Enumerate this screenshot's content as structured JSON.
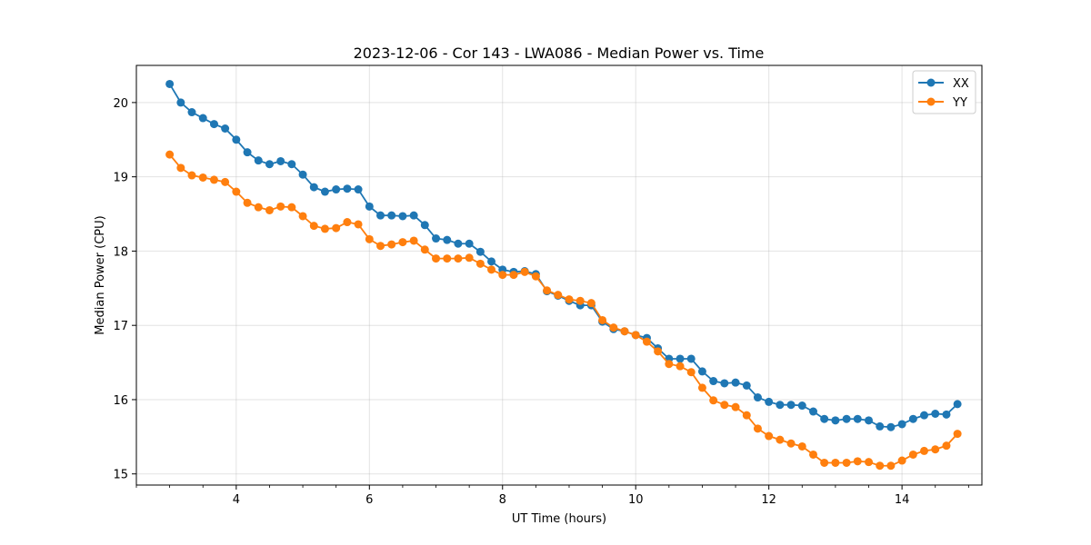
{
  "chart_data": {
    "type": "line",
    "title": "2023-12-06 - Cor 143 - LWA086 - Median Power vs. Time",
    "xlabel": "UT Time (hours)",
    "ylabel": "Median Power (CPU)",
    "xlim": [
      2.5,
      15.2
    ],
    "ylim": [
      14.85,
      20.5
    ],
    "xticks": [
      4,
      6,
      8,
      10,
      12,
      14
    ],
    "xtick_labels": [
      "4",
      "6",
      "8",
      "10",
      "12",
      "14"
    ],
    "xminor_step": 0.5,
    "yticks": [
      15,
      16,
      17,
      18,
      19,
      20
    ],
    "ytick_labels": [
      "15",
      "16",
      "17",
      "18",
      "19",
      "20"
    ],
    "grid": true,
    "legend_position": "top-right",
    "x": [
      3.0,
      3.167,
      3.333,
      3.5,
      3.667,
      3.833,
      4.0,
      4.167,
      4.333,
      4.5,
      4.667,
      4.833,
      5.0,
      5.167,
      5.333,
      5.5,
      5.667,
      5.833,
      6.0,
      6.167,
      6.333,
      6.5,
      6.667,
      6.833,
      7.0,
      7.167,
      7.333,
      7.5,
      7.667,
      7.833,
      8.0,
      8.167,
      8.333,
      8.5,
      8.667,
      8.833,
      9.0,
      9.167,
      9.333,
      9.5,
      9.667,
      9.833,
      10.0,
      10.167,
      10.333,
      10.5,
      10.667,
      10.833,
      11.0,
      11.167,
      11.333,
      11.5,
      11.667,
      11.833,
      12.0,
      12.167,
      12.333,
      12.5,
      12.667,
      12.833,
      13.0,
      13.167,
      13.333,
      13.5,
      13.667,
      13.833,
      14.0,
      14.167,
      14.333,
      14.5,
      14.667,
      14.833
    ],
    "series": [
      {
        "name": "XX",
        "color": "#1f77b4",
        "values": [
          20.25,
          20.0,
          19.87,
          19.79,
          19.71,
          19.65,
          19.5,
          19.33,
          19.22,
          19.17,
          19.21,
          19.17,
          19.03,
          18.86,
          18.8,
          18.83,
          18.84,
          18.83,
          18.6,
          18.48,
          18.48,
          18.47,
          18.48,
          18.35,
          18.17,
          18.15,
          18.1,
          18.1,
          17.99,
          17.86,
          17.75,
          17.72,
          17.73,
          17.69,
          17.46,
          17.4,
          17.33,
          17.27,
          17.27,
          17.05,
          16.95,
          16.92,
          16.87,
          16.83,
          16.69,
          16.55,
          16.55,
          16.55,
          16.38,
          16.25,
          16.22,
          16.23,
          16.19,
          16.03,
          15.97,
          15.93,
          15.93,
          15.92,
          15.84,
          15.74,
          15.72,
          15.74,
          15.74,
          15.72,
          15.64,
          15.63,
          15.67,
          15.74,
          15.79,
          15.81,
          15.8,
          15.94
        ]
      },
      {
        "name": "YY",
        "color": "#ff7f0e",
        "values": [
          19.3,
          19.12,
          19.02,
          18.99,
          18.96,
          18.93,
          18.8,
          18.65,
          18.59,
          18.55,
          18.6,
          18.59,
          18.47,
          18.34,
          18.3,
          18.31,
          18.39,
          18.36,
          18.16,
          18.07,
          18.09,
          18.12,
          18.14,
          18.02,
          17.9,
          17.9,
          17.9,
          17.91,
          17.83,
          17.75,
          17.68,
          17.68,
          17.72,
          17.66,
          17.47,
          17.41,
          17.35,
          17.33,
          17.3,
          17.07,
          16.97,
          16.92,
          16.87,
          16.78,
          16.65,
          16.48,
          16.45,
          16.37,
          16.16,
          15.99,
          15.93,
          15.9,
          15.79,
          15.61,
          15.51,
          15.46,
          15.41,
          15.37,
          15.26,
          15.15,
          15.15,
          15.15,
          15.17,
          15.16,
          15.11,
          15.11,
          15.18,
          15.26,
          15.31,
          15.33,
          15.38,
          15.54
        ]
      }
    ]
  }
}
